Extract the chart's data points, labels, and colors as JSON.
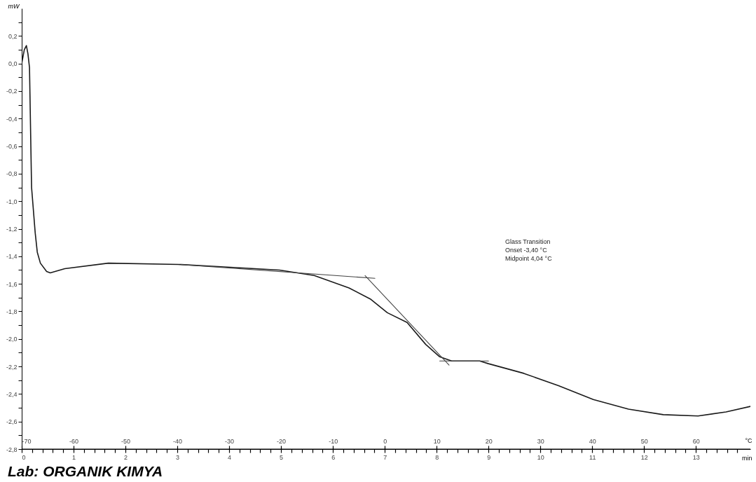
{
  "chart_data": {
    "type": "line",
    "ylabel": "mW",
    "xlabel": "min",
    "x2label": "°C",
    "xlim": [
      0,
      14.05
    ],
    "x2lim": [
      -70,
      70.5
    ],
    "ylim": [
      -2.8,
      0.4
    ],
    "xticks": [
      0,
      {
        "value": 0.2,
        "label": null
      },
      {
        "value": 0.4,
        "label": null
      },
      {
        "value": 0.6,
        "label": null
      },
      {
        "value": 0.8,
        "label": null
      },
      1,
      {
        "value": 1.2,
        "label": null
      },
      {
        "value": 1.4,
        "label": null
      },
      {
        "value": 1.6,
        "label": null
      },
      {
        "value": 1.8,
        "label": null
      },
      2,
      {
        "value": 2.2,
        "label": null
      },
      {
        "value": 2.4,
        "label": null
      },
      {
        "value": 2.6,
        "label": null
      },
      {
        "value": 2.8,
        "label": null
      },
      3,
      {
        "value": 3.2,
        "label": null
      },
      {
        "value": 3.4,
        "label": null
      },
      {
        "value": 3.6,
        "label": null
      },
      {
        "value": 3.8,
        "label": null
      },
      4,
      {
        "value": 4.2,
        "label": null
      },
      {
        "value": 4.4,
        "label": null
      },
      {
        "value": 4.6,
        "label": null
      },
      {
        "value": 4.8,
        "label": null
      },
      5,
      {
        "value": 5.2,
        "label": null
      },
      {
        "value": 5.4,
        "label": null
      },
      {
        "value": 5.6,
        "label": null
      },
      {
        "value": 5.8,
        "label": null
      },
      6,
      {
        "value": 6.2,
        "label": null
      },
      {
        "value": 6.4,
        "label": null
      },
      {
        "value": 6.6,
        "label": null
      },
      {
        "value": 6.8,
        "label": null
      },
      7,
      {
        "value": 7.2,
        "label": null
      },
      {
        "value": 7.4,
        "label": null
      },
      {
        "value": 7.6,
        "label": null
      },
      {
        "value": 7.8,
        "label": null
      },
      8,
      {
        "value": 8.2,
        "label": null
      },
      {
        "value": 8.4,
        "label": null
      },
      {
        "value": 8.6,
        "label": null
      },
      {
        "value": 8.8,
        "label": null
      },
      9,
      {
        "value": 9.2,
        "label": null
      },
      {
        "value": 9.4,
        "label": null
      },
      {
        "value": 9.6,
        "label": null
      },
      {
        "value": 9.8,
        "label": null
      },
      10,
      {
        "value": 10.2,
        "label": null
      },
      {
        "value": 10.4,
        "label": null
      },
      {
        "value": 10.6,
        "label": null
      },
      {
        "value": 10.8,
        "label": null
      },
      11,
      {
        "value": 11.2,
        "label": null
      },
      {
        "value": 11.4,
        "label": null
      },
      {
        "value": 11.6,
        "label": null
      },
      {
        "value": 11.8,
        "label": null
      },
      12,
      {
        "value": 12.2,
        "label": null
      },
      {
        "value": 12.4,
        "label": null
      },
      {
        "value": 12.6,
        "label": null
      },
      {
        "value": 12.8,
        "label": null
      },
      13,
      {
        "value": 13.2,
        "label": null
      },
      {
        "value": 13.4,
        "label": null
      },
      {
        "value": 13.6,
        "label": null
      },
      {
        "value": 13.8,
        "label": null
      }
    ],
    "x2ticks": [
      -70,
      -60,
      -50,
      -40,
      -30,
      -20,
      -10,
      0,
      10,
      20,
      30,
      40,
      50,
      60
    ],
    "yticks": [
      {
        "value": -2.8,
        "label": "-2,8"
      },
      {
        "value": -2.7,
        "label": null
      },
      {
        "value": -2.6,
        "label": "-2,6"
      },
      {
        "value": -2.5,
        "label": null
      },
      {
        "value": -2.4,
        "label": "-2,4"
      },
      {
        "value": -2.3,
        "label": null
      },
      {
        "value": -2.2,
        "label": "-2,2"
      },
      {
        "value": -2.1,
        "label": null
      },
      {
        "value": -2.0,
        "label": "-2,0"
      },
      {
        "value": -1.9,
        "label": null
      },
      {
        "value": -1.8,
        "label": "-1,8"
      },
      {
        "value": -1.7,
        "label": null
      },
      {
        "value": -1.6,
        "label": "-1,6"
      },
      {
        "value": -1.5,
        "label": null
      },
      {
        "value": -1.4,
        "label": "-1,4"
      },
      {
        "value": -1.3,
        "label": null
      },
      {
        "value": -1.2,
        "label": "-1,2"
      },
      {
        "value": -1.1,
        "label": null
      },
      {
        "value": -1.0,
        "label": "-1,0"
      },
      {
        "value": -0.9,
        "label": null
      },
      {
        "value": -0.8,
        "label": "-0,8"
      },
      {
        "value": -0.7,
        "label": null
      },
      {
        "value": -0.6,
        "label": "-0,6"
      },
      {
        "value": -0.5,
        "label": null
      },
      {
        "value": -0.4,
        "label": "-0,4"
      },
      {
        "value": -0.3,
        "label": null
      },
      {
        "value": -0.2,
        "label": "-0,2"
      },
      {
        "value": -0.1,
        "label": null
      },
      {
        "value": 0,
        "label": "0,0"
      },
      {
        "value": 0.1,
        "label": null
      },
      {
        "value": 0.2,
        "label": "0,2"
      },
      {
        "value": 0.3,
        "label": null
      }
    ],
    "grid": false,
    "annotations": [
      "Glass Transition",
      "Onset -3,40 °C",
      "Midpoint 4,04 °C",
      "Lab: ORGANIK KIMYA"
    ],
    "series": [
      {
        "color": "#1a1a1a",
        "x": [
          0,
          0.05,
          0.09,
          0.12,
          0.15,
          0.19,
          0.26,
          0.3,
          0.36,
          0.48,
          0.55,
          0.83,
          1.67,
          3.08,
          4.02,
          4.97,
          5.64,
          6.31,
          6.72,
          7.05,
          7.43,
          7.79,
          8.06,
          8.29,
          8.83,
          9.0,
          9.68,
          10.35,
          11.02,
          11.7,
          12.37,
          13.04,
          13.58,
          14.05
        ],
        "values": [
          0.0,
          0.1,
          0.13,
          0.07,
          -0.03,
          -0.9,
          -1.23,
          -1.37,
          -1.45,
          -1.51,
          -1.52,
          -1.49,
          -1.45,
          -1.46,
          -1.48,
          -1.5,
          -1.54,
          -1.63,
          -1.71,
          -1.81,
          -1.88,
          -2.04,
          -2.13,
          -2.16,
          -2.16,
          -2.18,
          -2.25,
          -2.34,
          -2.44,
          -2.51,
          -2.55,
          -2.56,
          -2.53,
          -2.49
        ]
      },
      {
        "color": "#444444",
        "x": [
          3.08,
          6.81
        ],
        "values": [
          -1.46,
          -1.56
        ]
      },
      {
        "color": "#444444",
        "x": [
          6.62,
          8.24
        ],
        "values": [
          -1.54,
          -2.19
        ]
      },
      {
        "color": "#444444",
        "x": [
          8.06,
          9.0
        ],
        "values": [
          -2.16,
          -2.16
        ]
      }
    ]
  }
}
